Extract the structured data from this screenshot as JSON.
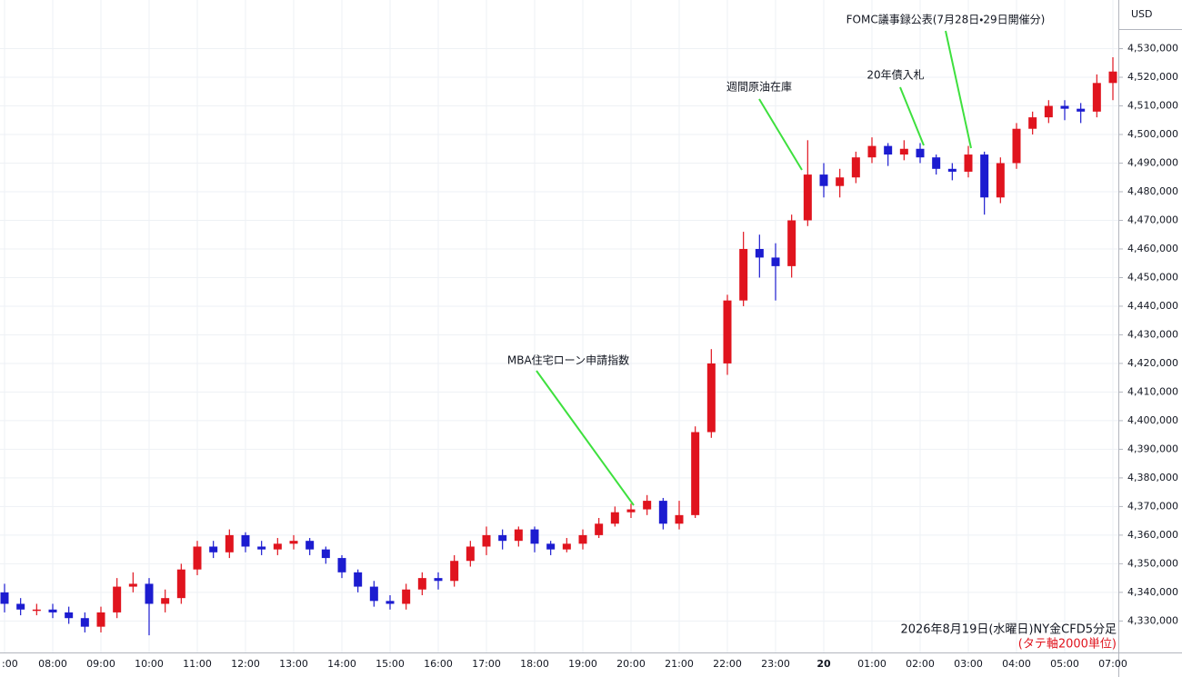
{
  "chart_data": {
    "type": "candlestick",
    "currency": "USD",
    "footer": "2026年8月19日(水曜日)NY金CFD5分足",
    "footer_note": "(タテ軸2000単位)",
    "up_color": "#e0141e",
    "down_color": "#1c1cd0",
    "grid": true,
    "annotations": [
      "MBA住宅ローン申請指数",
      "週間原油在庫",
      "20年債入札",
      "FOMC議事録公表(7月28日・29日開催分)"
    ],
    "categories": [
      ":00",
      null,
      null,
      "08:00",
      null,
      null,
      "09:00",
      null,
      null,
      "10:00",
      null,
      null,
      "11:00",
      null,
      null,
      "12:00",
      null,
      null,
      "13:00",
      null,
      null,
      "14:00",
      null,
      null,
      "15:00",
      null,
      null,
      "16:00",
      null,
      null,
      "17:00",
      null,
      null,
      "18:00",
      null,
      null,
      "19:00",
      null,
      null,
      "20:00",
      null,
      null,
      "21:00",
      null,
      null,
      "22:00",
      null,
      null,
      "23:00",
      null,
      null,
      "20",
      null,
      null,
      "01:00",
      null,
      null,
      "02:00",
      null,
      null,
      "03:00",
      null,
      null,
      "04:00",
      null,
      null,
      "05:00",
      null,
      null,
      "07:00"
    ],
    "open": [
      4340000,
      4336000,
      4334000,
      4334000,
      4333000,
      4331000,
      4328000,
      4333000,
      4342000,
      4343000,
      4336000,
      4338000,
      4348000,
      4356000,
      4354000,
      4360000,
      4356000,
      4355000,
      4357000,
      4358000,
      4355000,
      4352000,
      4347000,
      4342000,
      4337000,
      4336000,
      4341000,
      4345000,
      4344000,
      4351000,
      4356000,
      4360000,
      4358000,
      4362000,
      4357000,
      4355000,
      4357000,
      4360000,
      4364000,
      4368000,
      4369000,
      4372000,
      4364000,
      4367000,
      4396000,
      4420000,
      4442000,
      4460000,
      4457000,
      4454000,
      4470000,
      4486000,
      4482000,
      4485000,
      4492000,
      4496000,
      4493000,
      4495000,
      4492000,
      4488000,
      4487000,
      4493000,
      4478000,
      4490000,
      4502000,
      4506000,
      4510000,
      4509000,
      4508000,
      4518000
    ],
    "high": [
      4343000,
      4338000,
      4336000,
      4336000,
      4335000,
      4333000,
      4335000,
      4345000,
      4347000,
      4345000,
      4341000,
      4350000,
      4358000,
      4358000,
      4362000,
      4361000,
      4358000,
      4359000,
      4360000,
      4359000,
      4356000,
      4353000,
      4348000,
      4344000,
      4339000,
      4343000,
      4347000,
      4347000,
      4353000,
      4358000,
      4363000,
      4362000,
      4363000,
      4363000,
      4358000,
      4359000,
      4362000,
      4366000,
      4370000,
      4371000,
      4374000,
      4373000,
      4372000,
      4398000,
      4425000,
      4444000,
      4466000,
      4465000,
      4462000,
      4472000,
      4498000,
      4490000,
      4488000,
      4494000,
      4499000,
      4497000,
      4498000,
      4497000,
      4493000,
      4490000,
      4496000,
      4494000,
      4492000,
      4504000,
      4508000,
      4512000,
      4512000,
      4511000,
      4521000,
      4527000
    ],
    "low": [
      4333000,
      4332000,
      4332000,
      4331000,
      4329000,
      4326000,
      4326000,
      4331000,
      4340000,
      4325000,
      4333000,
      4336000,
      4346000,
      4352000,
      4352000,
      4354000,
      4353000,
      4353000,
      4355000,
      4353000,
      4350000,
      4345000,
      4340000,
      4335000,
      4334000,
      4334000,
      4339000,
      4341000,
      4342000,
      4349000,
      4353000,
      4355000,
      4356000,
      4354000,
      4353000,
      4354000,
      4355000,
      4359000,
      4363000,
      4366000,
      4367000,
      4362000,
      4362000,
      4366000,
      4394000,
      4416000,
      4440000,
      4450000,
      4442000,
      4450000,
      4468000,
      4478000,
      4478000,
      4483000,
      4490000,
      4489000,
      4491000,
      4490000,
      4486000,
      4484000,
      4485000,
      4472000,
      4476000,
      4488000,
      4500000,
      4504000,
      4505000,
      4504000,
      4506000,
      4512000
    ],
    "close": [
      4336000,
      4334000,
      4334000,
      4333000,
      4331000,
      4328000,
      4333000,
      4342000,
      4343000,
      4336000,
      4338000,
      4348000,
      4356000,
      4354000,
      4360000,
      4356000,
      4355000,
      4357000,
      4358000,
      4355000,
      4352000,
      4347000,
      4342000,
      4337000,
      4336000,
      4341000,
      4345000,
      4344000,
      4351000,
      4356000,
      4360000,
      4358000,
      4362000,
      4357000,
      4355000,
      4357000,
      4360000,
      4364000,
      4368000,
      4369000,
      4372000,
      4364000,
      4367000,
      4396000,
      4420000,
      4442000,
      4460000,
      4457000,
      4454000,
      4470000,
      4486000,
      4482000,
      4485000,
      4492000,
      4496000,
      4493000,
      4495000,
      4492000,
      4488000,
      4487000,
      4493000,
      4478000,
      4490000,
      4502000,
      4506000,
      4510000,
      4509000,
      4508000,
      4518000,
      4522000
    ],
    "ylim": [
      4319000,
      4547000
    ],
    "yticks": [
      {
        "value": 4330000,
        "label": "4,330,000"
      },
      {
        "value": 4340000,
        "label": "4,340,000"
      },
      {
        "value": 4350000,
        "label": "4,350,000"
      },
      {
        "value": 4360000,
        "label": "4,360,000"
      },
      {
        "value": 4370000,
        "label": "4,370,000"
      },
      {
        "value": 4380000,
        "label": "4,380,000"
      },
      {
        "value": 4390000,
        "label": "4,390,000"
      },
      {
        "value": 4400000,
        "label": "4,400,000"
      },
      {
        "value": 4410000,
        "label": "4,410,000"
      },
      {
        "value": 4420000,
        "label": "4,420,000"
      },
      {
        "value": 4430000,
        "label": "4,430,000"
      },
      {
        "value": 4440000,
        "label": "4,440,000"
      },
      {
        "value": 4450000,
        "label": "4,450,000"
      },
      {
        "value": 4460000,
        "label": "4,460,000"
      },
      {
        "value": 4470000,
        "label": "4,470,000"
      },
      {
        "value": 4480000,
        "label": "4,480,000"
      },
      {
        "value": 4490000,
        "label": "4,490,000"
      },
      {
        "value": 4500000,
        "label": "4,500,000"
      },
      {
        "value": 4510000,
        "label": "4,510,000"
      },
      {
        "value": 4520000,
        "label": "4,520,000"
      },
      {
        "value": 4530000,
        "label": "4,530,000"
      }
    ]
  }
}
